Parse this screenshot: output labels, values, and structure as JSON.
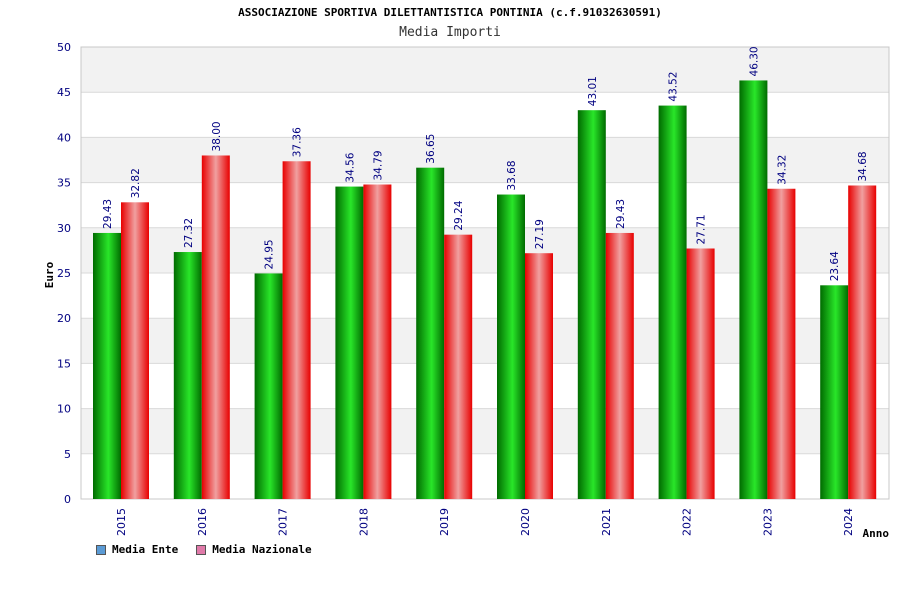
{
  "title": "ASSOCIAZIONE SPORTIVA DILETTANTISTICA PONTINIA (c.f.91032630591)",
  "subtitle": "Media Importi",
  "colors": {
    "series1_dark": "#006b00",
    "series1_light": "#29e629",
    "series2_dark": "#e80000",
    "series2_light": "#f0a0a0",
    "legend1": "#5b9bd5",
    "legend2": "#e07aa9",
    "axis_text": "#000080",
    "band": "#f2f2f2",
    "grid": "#d9d9d9"
  },
  "legend": {
    "items": [
      {
        "label": "Media Ente"
      },
      {
        "label": "Media Nazionale"
      }
    ]
  },
  "chart_data": {
    "type": "bar",
    "title": "ASSOCIAZIONE SPORTIVA DILETTANTISTICA PONTINIA (c.f.91032630591)",
    "subtitle": "Media Importi",
    "xlabel": "Anno",
    "ylabel": "Euro",
    "ylim": [
      0,
      50
    ],
    "yticks": [
      0,
      5,
      10,
      15,
      20,
      25,
      30,
      35,
      40,
      45,
      50
    ],
    "categories": [
      "2015",
      "2016",
      "2017",
      "2018",
      "2019",
      "2020",
      "2021",
      "2022",
      "2023",
      "2024"
    ],
    "series": [
      {
        "name": "Media Ente",
        "values": [
          29.43,
          27.32,
          24.95,
          34.56,
          36.65,
          33.68,
          43.01,
          43.52,
          46.3,
          23.64
        ]
      },
      {
        "name": "Media Nazionale",
        "values": [
          32.82,
          38.0,
          37.36,
          34.79,
          29.24,
          27.19,
          29.43,
          27.71,
          34.32,
          34.68
        ]
      }
    ],
    "value_labels": [
      [
        "29.43",
        "27.32",
        "24.95",
        "34.56",
        "36.65",
        "33.68",
        "43.01",
        "43.52",
        "46.30",
        "23.64"
      ],
      [
        "32.82",
        "38.00",
        "37.36",
        "34.79",
        "29.24",
        "27.19",
        "29.43",
        "27.71",
        "34.32",
        "34.68"
      ]
    ],
    "grid": true,
    "legend_position": "bottom-left"
  }
}
